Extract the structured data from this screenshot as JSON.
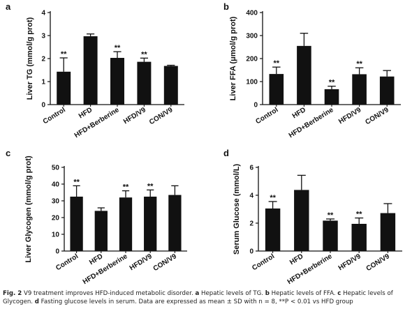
{
  "chart_data": [
    {
      "type": "bar",
      "panel_label": "a",
      "ylabel": "Liver TG (mmol/g prot)",
      "xlabel": "",
      "categories": [
        "Control",
        "HFD",
        "HFD+Berberine",
        "HFD/V9",
        "CON/V9"
      ],
      "values": [
        1.43,
        2.97,
        2.03,
        1.86,
        1.68
      ],
      "errors": [
        0.6,
        0.1,
        0.27,
        0.16,
        0.03
      ],
      "significance": [
        "**",
        "",
        "**",
        "**",
        ""
      ],
      "ylim": [
        0,
        4
      ],
      "yticks": [
        0,
        1,
        2,
        3,
        4
      ],
      "bar_color": "#111111"
    },
    {
      "type": "bar",
      "panel_label": "b",
      "ylabel": "Liver FFA (μmol/g prot)",
      "xlabel": "",
      "categories": [
        "Control",
        "HFD",
        "HFD+Berberine",
        "HFD/V9",
        "CON/V9"
      ],
      "values": [
        133,
        255,
        67,
        132,
        122
      ],
      "errors": [
        30,
        55,
        13,
        28,
        26
      ],
      "significance": [
        "**",
        "",
        "**",
        "**",
        ""
      ],
      "ylim": [
        0,
        400
      ],
      "yticks": [
        0,
        100,
        200,
        300,
        400
      ],
      "bar_color": "#111111"
    },
    {
      "type": "bar",
      "panel_label": "c",
      "ylabel": "Liver Glycogen (mmol/g prot)",
      "xlabel": "",
      "categories": [
        "Control",
        "HFD",
        "HFD+Berberine",
        "HFD/V9",
        "CON/V9"
      ],
      "values": [
        32.5,
        24,
        32,
        32.5,
        33.5
      ],
      "errors": [
        6.5,
        1.8,
        4,
        4,
        5.5
      ],
      "significance": [
        "**",
        "",
        "**",
        "**",
        ""
      ],
      "ylim": [
        0,
        50
      ],
      "yticks": [
        0,
        10,
        20,
        30,
        40,
        50
      ],
      "bar_color": "#111111"
    },
    {
      "type": "bar",
      "panel_label": "d",
      "ylabel": "Serum Glucose (mmol/L)",
      "xlabel": "",
      "categories": [
        "Control",
        "HFD",
        "HFD+Berberine",
        "HFD/V9",
        "CON/V9"
      ],
      "values": [
        3.05,
        4.38,
        2.18,
        1.95,
        2.72
      ],
      "errors": [
        0.5,
        1.05,
        0.12,
        0.42,
        0.68
      ],
      "significance": [
        "**",
        "",
        "**",
        "**",
        ""
      ],
      "ylim": [
        0,
        6
      ],
      "yticks": [
        0,
        2,
        4,
        6
      ],
      "bar_color": "#111111"
    }
  ],
  "caption": {
    "fig_label": "Fig. 2",
    "text_1": " V9 treatment improves HFD-induced metabolic disorder. ",
    "a": "a",
    "text_a": " Hepatic levels of TG. ",
    "b": "b",
    "text_b": " Hepatic levels of FFA. ",
    "c": "c",
    "text_c": " Hepatic levels of Glycogen. ",
    "d": "d",
    "text_d": " Fasting glucose levels in serum. Data are expressed as mean ± SD with n = 8, **P < 0.01 vs HFD group"
  }
}
